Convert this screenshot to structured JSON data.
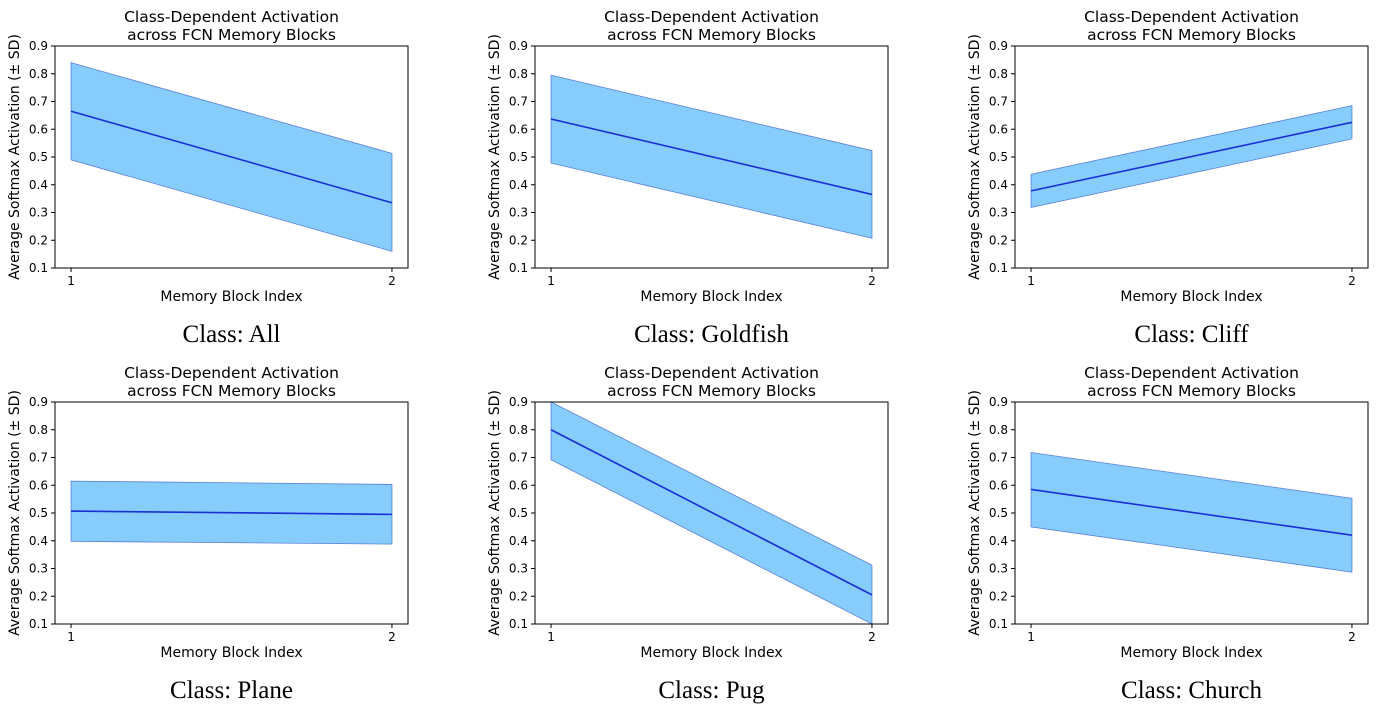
{
  "chart_data": [
    {
      "type": "area",
      "title": [
        "Class-Dependent Activation",
        "across FCN Memory Blocks"
      ],
      "xlabel": "Memory Block Index",
      "ylabel": "Average Softmax Activation (± SD)",
      "x": [
        1,
        2
      ],
      "xticks": [
        "1",
        "2"
      ],
      "xlim": [
        0.95,
        2.05
      ],
      "ylim": [
        0.1,
        0.9
      ],
      "yticks": [
        "0.1",
        "0.2",
        "0.3",
        "0.4",
        "0.5",
        "0.6",
        "0.7",
        "0.8",
        "0.9"
      ],
      "mean": [
        0.665,
        0.335
      ],
      "lower": [
        0.49,
        0.16
      ],
      "upper": [
        0.84,
        0.513
      ],
      "caption": "Class:  All",
      "line_color": "#1a2fd4",
      "fill_color": "#86cdfc",
      "grid": false
    },
    {
      "type": "area",
      "title": [
        "Class-Dependent Activation",
        "across FCN Memory Blocks"
      ],
      "xlabel": "Memory Block Index",
      "ylabel": "Average Softmax Activation (± SD)",
      "x": [
        1,
        2
      ],
      "xticks": [
        "1",
        "2"
      ],
      "xlim": [
        0.95,
        2.05
      ],
      "ylim": [
        0.1,
        0.9
      ],
      "yticks": [
        "0.1",
        "0.2",
        "0.3",
        "0.4",
        "0.5",
        "0.6",
        "0.7",
        "0.8",
        "0.9"
      ],
      "mean": [
        0.637,
        0.365
      ],
      "lower": [
        0.478,
        0.207
      ],
      "upper": [
        0.795,
        0.523
      ],
      "caption": "Class:  Goldfish",
      "line_color": "#1a2fd4",
      "fill_color": "#86cdfc",
      "grid": false
    },
    {
      "type": "area",
      "title": [
        "Class-Dependent Activation",
        "across FCN Memory Blocks"
      ],
      "xlabel": "Memory Block Index",
      "ylabel": "Average Softmax Activation (± SD)",
      "x": [
        1,
        2
      ],
      "xticks": [
        "1",
        "2"
      ],
      "xlim": [
        0.95,
        2.05
      ],
      "ylim": [
        0.1,
        0.9
      ],
      "yticks": [
        "0.1",
        "0.2",
        "0.3",
        "0.4",
        "0.5",
        "0.6",
        "0.7",
        "0.8",
        "0.9"
      ],
      "mean": [
        0.378,
        0.625
      ],
      "lower": [
        0.318,
        0.565
      ],
      "upper": [
        0.438,
        0.685
      ],
      "caption": "Class:  Cliff",
      "line_color": "#1a2fd4",
      "fill_color": "#86cdfc",
      "grid": false
    },
    {
      "type": "area",
      "title": [
        "Class-Dependent Activation",
        "across FCN Memory Blocks"
      ],
      "xlabel": "Memory Block Index",
      "ylabel": "Average Softmax Activation (± SD)",
      "x": [
        1,
        2
      ],
      "xticks": [
        "1",
        "2"
      ],
      "xlim": [
        0.95,
        2.05
      ],
      "ylim": [
        0.1,
        0.9
      ],
      "yticks": [
        "0.1",
        "0.2",
        "0.3",
        "0.4",
        "0.5",
        "0.6",
        "0.7",
        "0.8",
        "0.9"
      ],
      "mean": [
        0.507,
        0.495
      ],
      "lower": [
        0.398,
        0.388
      ],
      "upper": [
        0.615,
        0.603
      ],
      "caption": "Class:  Plane",
      "line_color": "#1a2fd4",
      "fill_color": "#86cdfc",
      "grid": false
    },
    {
      "type": "area",
      "title": [
        "Class-Dependent Activation",
        "across FCN Memory Blocks"
      ],
      "xlabel": "Memory Block Index",
      "ylabel": "Average Softmax Activation (± SD)",
      "x": [
        1,
        2
      ],
      "xticks": [
        "1",
        "2"
      ],
      "xlim": [
        0.95,
        2.05
      ],
      "ylim": [
        0.1,
        0.9
      ],
      "yticks": [
        "0.1",
        "0.2",
        "0.3",
        "0.4",
        "0.5",
        "0.6",
        "0.7",
        "0.8",
        "0.9"
      ],
      "mean": [
        0.8,
        0.205
      ],
      "lower": [
        0.692,
        0.1
      ],
      "upper": [
        0.9,
        0.312
      ],
      "caption": "Class:  Pug",
      "line_color": "#1a2fd4",
      "fill_color": "#86cdfc",
      "grid": false
    },
    {
      "type": "area",
      "title": [
        "Class-Dependent Activation",
        "across FCN Memory Blocks"
      ],
      "xlabel": "Memory Block Index",
      "ylabel": "Average Softmax Activation (± SD)",
      "x": [
        1,
        2
      ],
      "xticks": [
        "1",
        "2"
      ],
      "xlim": [
        0.95,
        2.05
      ],
      "ylim": [
        0.1,
        0.9
      ],
      "yticks": [
        "0.1",
        "0.2",
        "0.3",
        "0.4",
        "0.5",
        "0.6",
        "0.7",
        "0.8",
        "0.9"
      ],
      "mean": [
        0.585,
        0.42
      ],
      "lower": [
        0.45,
        0.287
      ],
      "upper": [
        0.718,
        0.553
      ],
      "caption": "Class:  Church",
      "line_color": "#1a2fd4",
      "fill_color": "#86cdfc",
      "grid": false
    }
  ]
}
